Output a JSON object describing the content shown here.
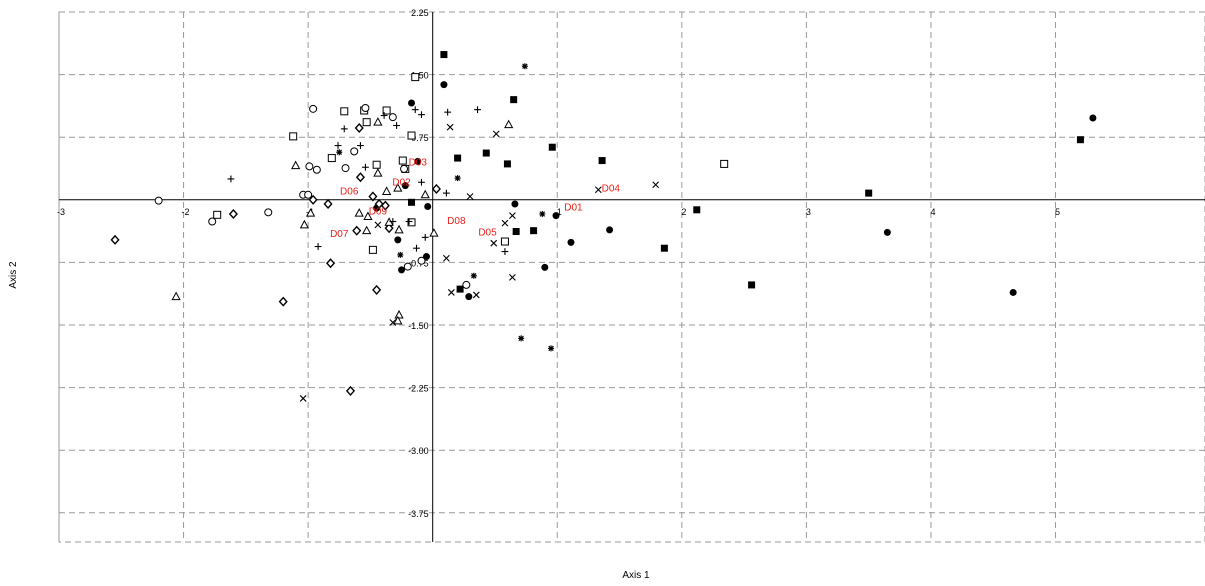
{
  "chart_data": {
    "type": "scatter",
    "title": "",
    "xlabel": "Axis 1",
    "ylabel": "Axis 2",
    "xlim": [
      -3,
      6.2
    ],
    "ylim": [
      -4.1,
      2.25
    ],
    "grid": true,
    "x_ticks": [
      {
        "value": -3,
        "label": "-3"
      },
      {
        "value": -2,
        "label": "-2"
      },
      {
        "value": -1,
        "label": "-1"
      },
      {
        "value": 1,
        "label": "1"
      },
      {
        "value": 2,
        "label": "2"
      },
      {
        "value": 3,
        "label": "3"
      },
      {
        "value": 4,
        "label": "4"
      },
      {
        "value": 5,
        "label": "5"
      }
    ],
    "y_ticks": [
      {
        "value": 2.25,
        "label": "2.25"
      },
      {
        "value": 1.5,
        "label": "1.50"
      },
      {
        "value": 0.75,
        "label": "0.75"
      },
      {
        "value": -0.75,
        "label": "-0.75"
      },
      {
        "value": -1.5,
        "label": "-1.50"
      },
      {
        "value": -2.25,
        "label": "-2.25"
      },
      {
        "value": -3.0,
        "label": "-3.00"
      },
      {
        "value": -3.75,
        "label": "-3.75"
      }
    ],
    "colors": {
      "points": "#000000",
      "labels": "#e8201a",
      "grid": "#999999",
      "axes": "#000000"
    },
    "label_points": [
      {
        "text": "D01",
        "x": 1.13,
        "y": -0.08
      },
      {
        "text": "D02",
        "x": -0.25,
        "y": 0.22
      },
      {
        "text": "D03",
        "x": -0.12,
        "y": 0.46
      },
      {
        "text": "D04",
        "x": 1.43,
        "y": 0.15
      },
      {
        "text": "D05",
        "x": 0.44,
        "y": -0.38
      },
      {
        "text": "D06",
        "x": -0.67,
        "y": 0.11
      },
      {
        "text": "D07",
        "x": -0.75,
        "y": -0.4
      },
      {
        "text": "D08",
        "x": 0.19,
        "y": -0.24
      },
      {
        "text": "D09",
        "x": -0.44,
        "y": -0.13
      }
    ],
    "series": [
      {
        "symbol": "filled-square",
        "points": [
          [
            0.09,
            1.74
          ],
          [
            0.65,
            1.2
          ],
          [
            0.96,
            0.63
          ],
          [
            0.2,
            0.5
          ],
          [
            0.43,
            0.56
          ],
          [
            0.6,
            0.43
          ],
          [
            1.36,
            0.47
          ],
          [
            -0.17,
            -0.03
          ],
          [
            0.67,
            -0.38
          ],
          [
            0.81,
            -0.37
          ],
          [
            1.86,
            -0.58
          ],
          [
            0.22,
            -1.07
          ],
          [
            2.12,
            -0.12
          ],
          [
            3.5,
            0.08
          ],
          [
            5.2,
            0.72
          ],
          [
            2.56,
            -1.02
          ]
        ]
      },
      {
        "symbol": "filled-circle",
        "points": [
          [
            0.09,
            1.38
          ],
          [
            -0.17,
            1.16
          ],
          [
            -0.12,
            0.46
          ],
          [
            -0.22,
            0.17
          ],
          [
            -0.45,
            -0.1
          ],
          [
            -0.28,
            -0.48
          ],
          [
            -0.25,
            -0.84
          ],
          [
            -0.05,
            -0.68
          ],
          [
            -0.04,
            -0.08
          ],
          [
            0.66,
            -0.05
          ],
          [
            0.99,
            -0.19
          ],
          [
            1.11,
            -0.51
          ],
          [
            1.42,
            -0.36
          ],
          [
            0.9,
            -0.81
          ],
          [
            0.29,
            -1.16
          ],
          [
            3.65,
            -0.39
          ],
          [
            4.66,
            -1.11
          ],
          [
            5.3,
            0.98
          ]
        ]
      },
      {
        "symbol": "open-square",
        "points": [
          [
            -0.14,
            1.47
          ],
          [
            -0.71,
            1.06
          ],
          [
            -0.55,
            1.07
          ],
          [
            -0.53,
            0.93
          ],
          [
            -0.37,
            1.07
          ],
          [
            -1.12,
            0.76
          ],
          [
            -0.17,
            0.77
          ],
          [
            -0.22,
            0.37
          ],
          [
            -0.81,
            0.5
          ],
          [
            -0.45,
            0.42
          ],
          [
            -0.24,
            0.47
          ],
          [
            -0.17,
            -0.27
          ],
          [
            -1.73,
            -0.18
          ],
          [
            -0.48,
            -0.6
          ],
          [
            0.58,
            -0.5
          ],
          [
            2.34,
            0.43
          ]
        ]
      },
      {
        "symbol": "open-circle",
        "points": [
          [
            -0.96,
            1.09
          ],
          [
            -0.54,
            1.1
          ],
          [
            -0.32,
            0.99
          ],
          [
            -0.63,
            0.58
          ],
          [
            -0.7,
            0.38
          ],
          [
            -0.99,
            0.4
          ],
          [
            -0.93,
            0.36
          ],
          [
            -0.23,
            0.37
          ],
          [
            -1.04,
            0.06
          ],
          [
            -1.0,
            0.06
          ],
          [
            -2.2,
            -0.01
          ],
          [
            -1.77,
            -0.26
          ],
          [
            -1.32,
            -0.15
          ],
          [
            -0.2,
            -0.8
          ],
          [
            -0.09,
            -0.73
          ],
          [
            0.27,
            -1.02
          ]
        ]
      },
      {
        "symbol": "diamond",
        "points": [
          [
            -2.55,
            -0.48
          ],
          [
            -1.6,
            -0.17
          ],
          [
            -1.2,
            -1.22
          ],
          [
            -0.96,
            0.0
          ],
          [
            -0.84,
            -0.05
          ],
          [
            -0.61,
            -0.37
          ],
          [
            -0.59,
            0.86
          ],
          [
            -0.58,
            0.27
          ],
          [
            -0.48,
            0.04
          ],
          [
            -0.45,
            -1.08
          ],
          [
            -0.43,
            -0.05
          ],
          [
            -0.38,
            -0.07
          ],
          [
            -0.82,
            -0.76
          ],
          [
            -0.66,
            -2.29
          ],
          [
            -0.35,
            -0.34
          ],
          [
            0.03,
            0.13
          ]
        ]
      },
      {
        "symbol": "triangle",
        "points": [
          [
            -2.06,
            -1.16
          ],
          [
            -1.1,
            0.41
          ],
          [
            -1.03,
            -0.3
          ],
          [
            -0.98,
            -0.16
          ],
          [
            -0.59,
            -0.16
          ],
          [
            -0.52,
            -0.2
          ],
          [
            -0.53,
            -0.37
          ],
          [
            -0.44,
            0.93
          ],
          [
            -0.44,
            0.32
          ],
          [
            -0.37,
            0.1
          ],
          [
            -0.35,
            -0.27
          ],
          [
            -0.28,
            0.14
          ],
          [
            -0.27,
            -0.36
          ],
          [
            -0.06,
            0.06
          ],
          [
            0.01,
            -0.4
          ],
          [
            -0.27,
            -1.38
          ],
          [
            -0.28,
            -1.45
          ],
          [
            0.61,
            0.9
          ]
        ]
      },
      {
        "symbol": "plus",
        "points": [
          [
            -1.62,
            0.25
          ],
          [
            -0.71,
            0.85
          ],
          [
            -0.76,
            0.65
          ],
          [
            -0.58,
            0.65
          ],
          [
            -0.54,
            0.39
          ],
          [
            -0.39,
            1.01
          ],
          [
            -0.29,
            0.89
          ],
          [
            -0.14,
            1.08
          ],
          [
            -0.09,
            1.02
          ],
          [
            0.12,
            1.05
          ],
          [
            0.36,
            1.08
          ],
          [
            -0.92,
            -0.56
          ],
          [
            -0.32,
            -0.26
          ],
          [
            -0.19,
            -0.26
          ],
          [
            -0.06,
            -0.45
          ],
          [
            -0.13,
            -0.58
          ],
          [
            -0.09,
            0.21
          ],
          [
            0.11,
            0.08
          ],
          [
            0.58,
            -0.62
          ]
        ]
      },
      {
        "symbol": "x-cross",
        "points": [
          [
            0.14,
            0.87
          ],
          [
            0.51,
            0.79
          ],
          [
            0.3,
            0.04
          ],
          [
            0.58,
            -0.28
          ],
          [
            0.64,
            -0.19
          ],
          [
            0.49,
            -0.52
          ],
          [
            0.11,
            -0.7
          ],
          [
            0.15,
            -1.11
          ],
          [
            0.35,
            -1.14
          ],
          [
            0.64,
            -0.93
          ],
          [
            1.33,
            0.12
          ],
          [
            1.79,
            0.18
          ],
          [
            -0.32,
            -1.47
          ],
          [
            -1.04,
            -2.38
          ],
          [
            -0.44,
            -0.3
          ]
        ]
      },
      {
        "symbol": "asterisk",
        "points": [
          [
            0.74,
            1.6
          ],
          [
            -0.75,
            0.57
          ],
          [
            0.2,
            0.26
          ],
          [
            0.88,
            -0.17
          ],
          [
            -0.26,
            -0.66
          ],
          [
            0.33,
            -0.91
          ],
          [
            0.71,
            -1.66
          ],
          [
            0.95,
            -1.78
          ]
        ]
      }
    ]
  }
}
